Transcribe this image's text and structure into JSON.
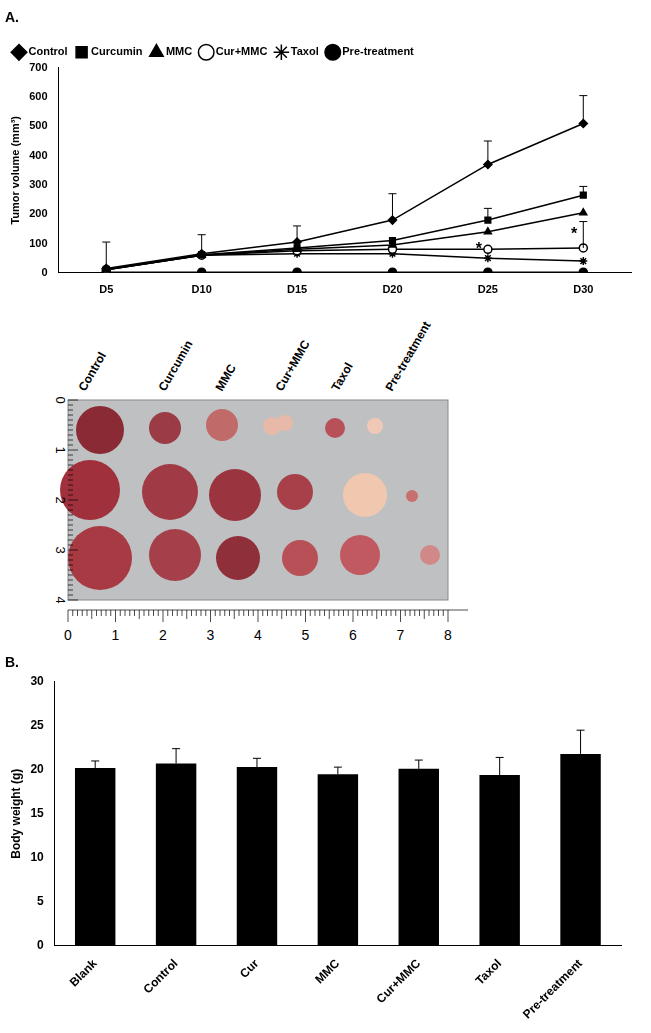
{
  "chart_data": [
    {
      "type": "line",
      "title": "A.",
      "y_label": "Tumor volume (mm³)",
      "categories": [
        "D5",
        "D10",
        "D15",
        "D20",
        "D25",
        "D30"
      ],
      "ylim": [
        0,
        700
      ],
      "yticks": [
        0,
        100,
        200,
        300,
        400,
        500,
        600,
        700
      ],
      "grid": false,
      "legend": "upper left",
      "series": [
        {
          "name": "Control",
          "color": "#000000",
          "marker": "diamond",
          "values": [
            15,
            65,
            105,
            180,
            370,
            510
          ],
          "errors": [
            90,
            65,
            55,
            90,
            80,
            95
          ]
        },
        {
          "name": "Curcumin",
          "color": "#000000",
          "marker": "square",
          "values": [
            12,
            62,
            85,
            110,
            180,
            265
          ],
          "errors": [
            null,
            null,
            null,
            null,
            40,
            30
          ]
        },
        {
          "name": "MMC",
          "color": "#000000",
          "marker": "triangle",
          "values": [
            10,
            60,
            80,
            95,
            140,
            205
          ],
          "errors": [
            null,
            null,
            null,
            null,
            null,
            null
          ]
        },
        {
          "name": "Cur+MMC",
          "color": "#000000",
          "marker": "open_circle",
          "values": [
            10,
            60,
            75,
            80,
            80,
            85
          ],
          "errors": [
            null,
            null,
            null,
            null,
            null,
            90
          ]
        },
        {
          "name": "Taxol",
          "color": "#000000",
          "marker": "star",
          "values": [
            10,
            60,
            65,
            65,
            50,
            40
          ],
          "errors": [
            null,
            null,
            null,
            null,
            null,
            null
          ]
        },
        {
          "name": "Pre-treatment",
          "color": "#000000",
          "marker": "circle",
          "values": [
            2,
            2,
            2,
            2,
            2,
            2
          ],
          "errors": [
            null,
            null,
            null,
            null,
            null,
            null
          ]
        }
      ],
      "annotations": [
        {
          "x": "D25",
          "y": 80,
          "text": "*"
        },
        {
          "x": "D30",
          "y": 130,
          "text": "*"
        }
      ]
    },
    {
      "type": "bar",
      "title": "B.",
      "y_label": "Body weight (g)",
      "categories": [
        "Blank",
        "Control",
        "Cur",
        "MMC",
        "Cur+MMC",
        "Taxol",
        "Pre-treatment"
      ],
      "values": [
        20.2,
        20.7,
        20.3,
        19.5,
        20.1,
        19.4,
        21.8
      ],
      "errors": [
        0.8,
        1.7,
        1.0,
        0.8,
        1.0,
        2.0,
        2.7
      ],
      "color": "#000000",
      "ylim": [
        0,
        30
      ],
      "yticks": [
        0,
        5,
        10,
        15,
        20,
        25,
        30
      ],
      "grid": false
    }
  ],
  "photo": {
    "labels": [
      "Control",
      "Curcumin",
      "MMC",
      "Cur+MMC",
      "Taxol",
      "Pre-treatment"
    ],
    "ruler_vertical": [
      0,
      1,
      2,
      3,
      4
    ],
    "ruler_horizontal": [
      0,
      1,
      2,
      3,
      4,
      5,
      6,
      7,
      8
    ]
  }
}
